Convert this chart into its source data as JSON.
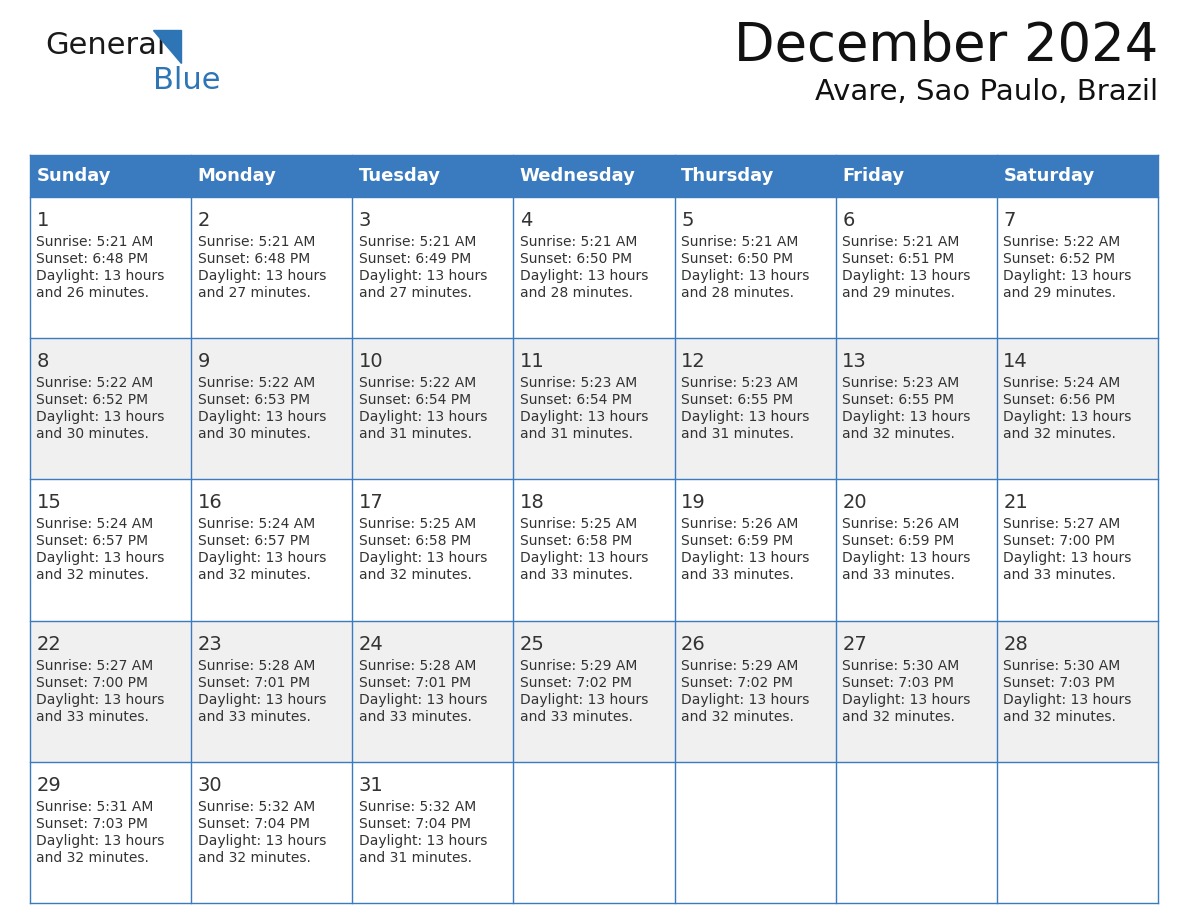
{
  "title": "December 2024",
  "subtitle": "Avare, Sao Paulo, Brazil",
  "header_color": "#3a7abf",
  "header_text_color": "#ffffff",
  "day_names": [
    "Sunday",
    "Monday",
    "Tuesday",
    "Wednesday",
    "Thursday",
    "Friday",
    "Saturday"
  ],
  "days": [
    {
      "day": 1,
      "col": 0,
      "row": 0,
      "sunrise": "5:21 AM",
      "sunset": "6:48 PM",
      "daylight": "13 hours and 26 minutes."
    },
    {
      "day": 2,
      "col": 1,
      "row": 0,
      "sunrise": "5:21 AM",
      "sunset": "6:48 PM",
      "daylight": "13 hours and 27 minutes."
    },
    {
      "day": 3,
      "col": 2,
      "row": 0,
      "sunrise": "5:21 AM",
      "sunset": "6:49 PM",
      "daylight": "13 hours and 27 minutes."
    },
    {
      "day": 4,
      "col": 3,
      "row": 0,
      "sunrise": "5:21 AM",
      "sunset": "6:50 PM",
      "daylight": "13 hours and 28 minutes."
    },
    {
      "day": 5,
      "col": 4,
      "row": 0,
      "sunrise": "5:21 AM",
      "sunset": "6:50 PM",
      "daylight": "13 hours and 28 minutes."
    },
    {
      "day": 6,
      "col": 5,
      "row": 0,
      "sunrise": "5:21 AM",
      "sunset": "6:51 PM",
      "daylight": "13 hours and 29 minutes."
    },
    {
      "day": 7,
      "col": 6,
      "row": 0,
      "sunrise": "5:22 AM",
      "sunset": "6:52 PM",
      "daylight": "13 hours and 29 minutes."
    },
    {
      "day": 8,
      "col": 0,
      "row": 1,
      "sunrise": "5:22 AM",
      "sunset": "6:52 PM",
      "daylight": "13 hours and 30 minutes."
    },
    {
      "day": 9,
      "col": 1,
      "row": 1,
      "sunrise": "5:22 AM",
      "sunset": "6:53 PM",
      "daylight": "13 hours and 30 minutes."
    },
    {
      "day": 10,
      "col": 2,
      "row": 1,
      "sunrise": "5:22 AM",
      "sunset": "6:54 PM",
      "daylight": "13 hours and 31 minutes."
    },
    {
      "day": 11,
      "col": 3,
      "row": 1,
      "sunrise": "5:23 AM",
      "sunset": "6:54 PM",
      "daylight": "13 hours and 31 minutes."
    },
    {
      "day": 12,
      "col": 4,
      "row": 1,
      "sunrise": "5:23 AM",
      "sunset": "6:55 PM",
      "daylight": "13 hours and 31 minutes."
    },
    {
      "day": 13,
      "col": 5,
      "row": 1,
      "sunrise": "5:23 AM",
      "sunset": "6:55 PM",
      "daylight": "13 hours and 32 minutes."
    },
    {
      "day": 14,
      "col": 6,
      "row": 1,
      "sunrise": "5:24 AM",
      "sunset": "6:56 PM",
      "daylight": "13 hours and 32 minutes."
    },
    {
      "day": 15,
      "col": 0,
      "row": 2,
      "sunrise": "5:24 AM",
      "sunset": "6:57 PM",
      "daylight": "13 hours and 32 minutes."
    },
    {
      "day": 16,
      "col": 1,
      "row": 2,
      "sunrise": "5:24 AM",
      "sunset": "6:57 PM",
      "daylight": "13 hours and 32 minutes."
    },
    {
      "day": 17,
      "col": 2,
      "row": 2,
      "sunrise": "5:25 AM",
      "sunset": "6:58 PM",
      "daylight": "13 hours and 32 minutes."
    },
    {
      "day": 18,
      "col": 3,
      "row": 2,
      "sunrise": "5:25 AM",
      "sunset": "6:58 PM",
      "daylight": "13 hours and 33 minutes."
    },
    {
      "day": 19,
      "col": 4,
      "row": 2,
      "sunrise": "5:26 AM",
      "sunset": "6:59 PM",
      "daylight": "13 hours and 33 minutes."
    },
    {
      "day": 20,
      "col": 5,
      "row": 2,
      "sunrise": "5:26 AM",
      "sunset": "6:59 PM",
      "daylight": "13 hours and 33 minutes."
    },
    {
      "day": 21,
      "col": 6,
      "row": 2,
      "sunrise": "5:27 AM",
      "sunset": "7:00 PM",
      "daylight": "13 hours and 33 minutes."
    },
    {
      "day": 22,
      "col": 0,
      "row": 3,
      "sunrise": "5:27 AM",
      "sunset": "7:00 PM",
      "daylight": "13 hours and 33 minutes."
    },
    {
      "day": 23,
      "col": 1,
      "row": 3,
      "sunrise": "5:28 AM",
      "sunset": "7:01 PM",
      "daylight": "13 hours and 33 minutes."
    },
    {
      "day": 24,
      "col": 2,
      "row": 3,
      "sunrise": "5:28 AM",
      "sunset": "7:01 PM",
      "daylight": "13 hours and 33 minutes."
    },
    {
      "day": 25,
      "col": 3,
      "row": 3,
      "sunrise": "5:29 AM",
      "sunset": "7:02 PM",
      "daylight": "13 hours and 33 minutes."
    },
    {
      "day": 26,
      "col": 4,
      "row": 3,
      "sunrise": "5:29 AM",
      "sunset": "7:02 PM",
      "daylight": "13 hours and 32 minutes."
    },
    {
      "day": 27,
      "col": 5,
      "row": 3,
      "sunrise": "5:30 AM",
      "sunset": "7:03 PM",
      "daylight": "13 hours and 32 minutes."
    },
    {
      "day": 28,
      "col": 6,
      "row": 3,
      "sunrise": "5:30 AM",
      "sunset": "7:03 PM",
      "daylight": "13 hours and 32 minutes."
    },
    {
      "day": 29,
      "col": 0,
      "row": 4,
      "sunrise": "5:31 AM",
      "sunset": "7:03 PM",
      "daylight": "13 hours and 32 minutes."
    },
    {
      "day": 30,
      "col": 1,
      "row": 4,
      "sunrise": "5:32 AM",
      "sunset": "7:04 PM",
      "daylight": "13 hours and 32 minutes."
    },
    {
      "day": 31,
      "col": 2,
      "row": 4,
      "sunrise": "5:32 AM",
      "sunset": "7:04 PM",
      "daylight": "13 hours and 31 minutes."
    }
  ],
  "num_rows": 5,
  "logo_triangle_color": "#2e75b6",
  "logo_blue_color": "#2e75b6",
  "logo_general_color": "#1a1a1a",
  "title_fontsize": 38,
  "subtitle_fontsize": 21,
  "header_fontsize": 13,
  "day_number_fontsize": 14,
  "cell_text_fontsize": 10,
  "border_color": "#3a7abf",
  "text_color": "#333333",
  "row_bg_colors": [
    "#ffffff",
    "#f0f0f0"
  ]
}
